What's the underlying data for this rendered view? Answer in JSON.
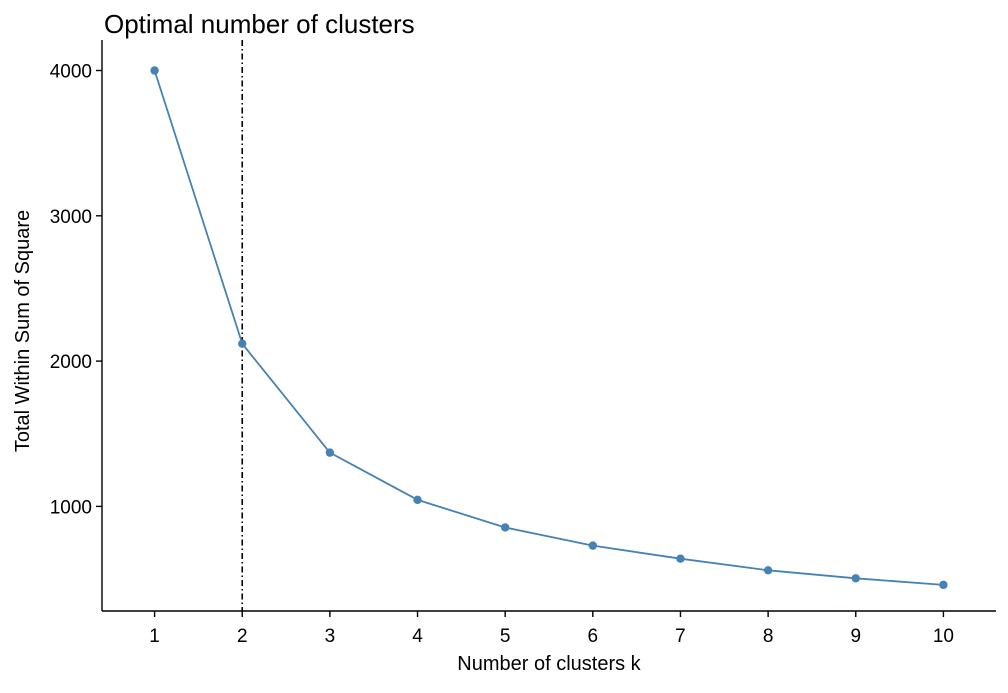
{
  "chart_data": {
    "type": "line",
    "title": "Optimal number of clusters",
    "xlabel": "Number of clusters k",
    "ylabel": "Total Within Sum of Square",
    "categories": [
      "1",
      "2",
      "3",
      "4",
      "5",
      "6",
      "7",
      "8",
      "9",
      "10"
    ],
    "x": [
      1,
      2,
      3,
      4,
      5,
      6,
      7,
      8,
      9,
      10
    ],
    "series": [
      {
        "values": [
          4000,
          2120,
          1370,
          1045,
          855,
          730,
          640,
          560,
          505,
          460
        ],
        "color": "#4682B4"
      }
    ],
    "yticks": [
      1000,
      2000,
      3000,
      4000
    ],
    "ylim": [
      280,
      4210
    ],
    "xlim": [
      0.4,
      10.6
    ],
    "reference_line": {
      "x": 2,
      "style": "dotdash",
      "color": "#000000"
    },
    "grid": false,
    "legend": "none"
  }
}
